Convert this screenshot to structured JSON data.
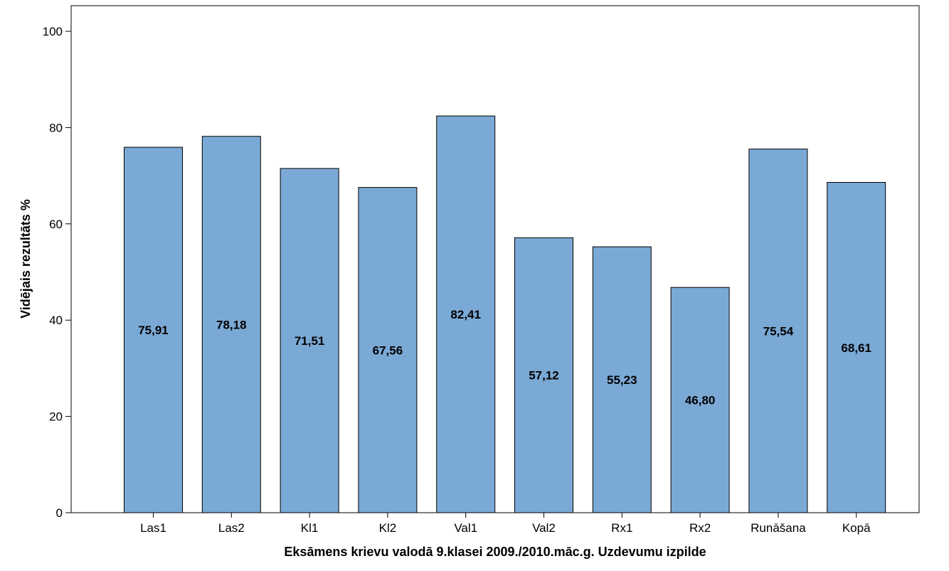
{
  "chart_data": {
    "type": "bar",
    "categories": [
      "Las1",
      "Las2",
      "Kl1",
      "Kl2",
      "Val1",
      "Val2",
      "Rx1",
      "Rx2",
      "Runāšana",
      "Kopā"
    ],
    "values": [
      75.91,
      78.18,
      71.51,
      67.56,
      82.41,
      57.12,
      55.23,
      46.8,
      75.54,
      68.61
    ],
    "data_labels": [
      "75,91",
      "78,18",
      "71,51",
      "67,56",
      "82,41",
      "57,12",
      "55,23",
      "46,80",
      "75,54",
      "68,61"
    ],
    "title": "",
    "xlabel": "Eksāmens krievu valodā 9.klasei 2009./2010.māc.g. Uzdevumu izpilde",
    "ylabel": "Vidējais rezultāts %",
    "ylim": [
      0,
      105
    ],
    "yticks": [
      0,
      20,
      40,
      60,
      80,
      100
    ],
    "grid": false,
    "legend": "none",
    "bar_color": "#7ba9d5",
    "bar_edge_color": "#000000"
  }
}
